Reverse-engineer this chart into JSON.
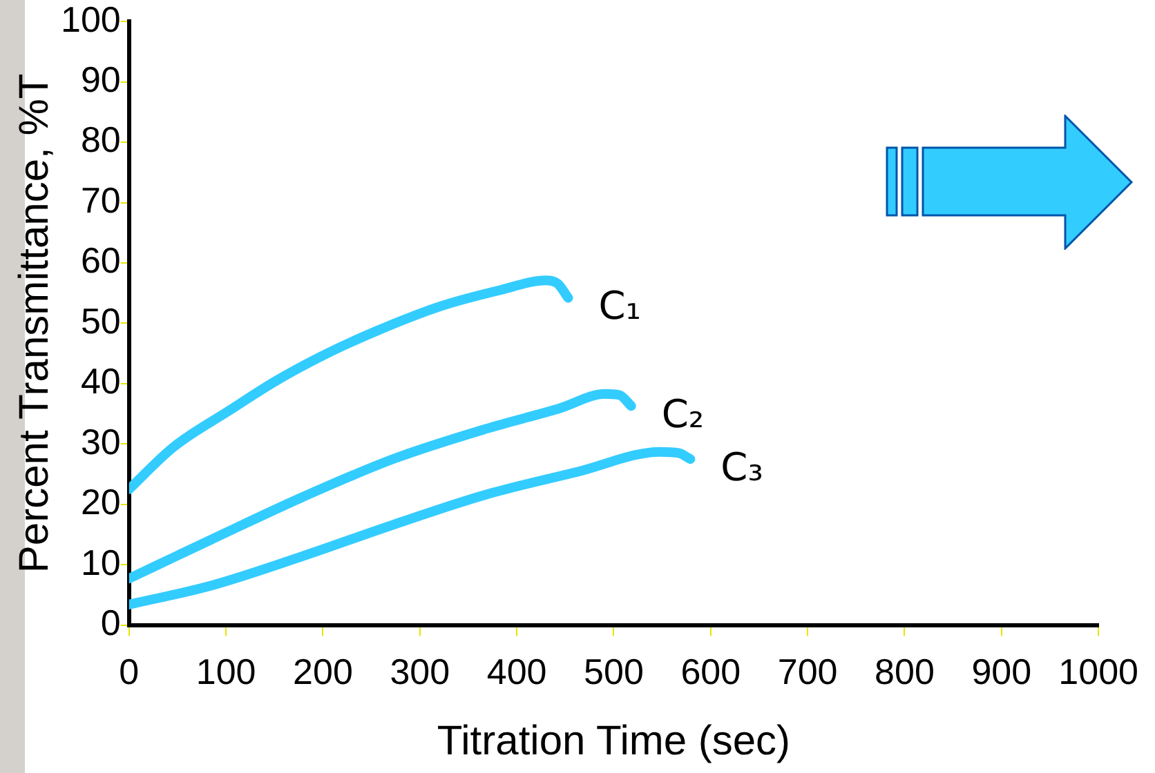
{
  "chart_data": {
    "type": "line",
    "xlabel": "Titration Time (sec)",
    "ylabel": "Percent Transmittance, %T",
    "xlim": [
      0,
      1000
    ],
    "ylim": [
      0,
      100
    ],
    "xticks": [
      0,
      100,
      200,
      300,
      400,
      500,
      600,
      700,
      800,
      900,
      1000
    ],
    "yticks": [
      0,
      10,
      20,
      30,
      40,
      50,
      60,
      70,
      80,
      90,
      100
    ],
    "marker": "none",
    "series": [
      {
        "name": "C₁",
        "color": "#33ccff",
        "x": [
          0,
          46,
          103,
          151,
          203,
          255,
          321,
          383,
          430,
          442,
          453
        ],
        "values": [
          22.5,
          29.5,
          35.5,
          40.4,
          44.9,
          48.7,
          52.8,
          55.5,
          57.1,
          56.6,
          54.2
        ]
      },
      {
        "name": "C₂",
        "color": "#33ccff",
        "x": [
          0,
          84,
          179,
          274,
          368,
          444,
          491,
          506,
          518
        ],
        "values": [
          7.7,
          14.1,
          21.2,
          27.6,
          32.5,
          35.9,
          38.3,
          38.1,
          36.3
        ]
      },
      {
        "name": "C₃",
        "color": "#33ccff",
        "x": [
          0,
          84,
          179,
          274,
          368,
          463,
          548,
          567,
          579
        ],
        "values": [
          3.4,
          6.5,
          11.4,
          16.7,
          21.6,
          25.4,
          28.7,
          28.5,
          27.5
        ]
      }
    ]
  }
}
